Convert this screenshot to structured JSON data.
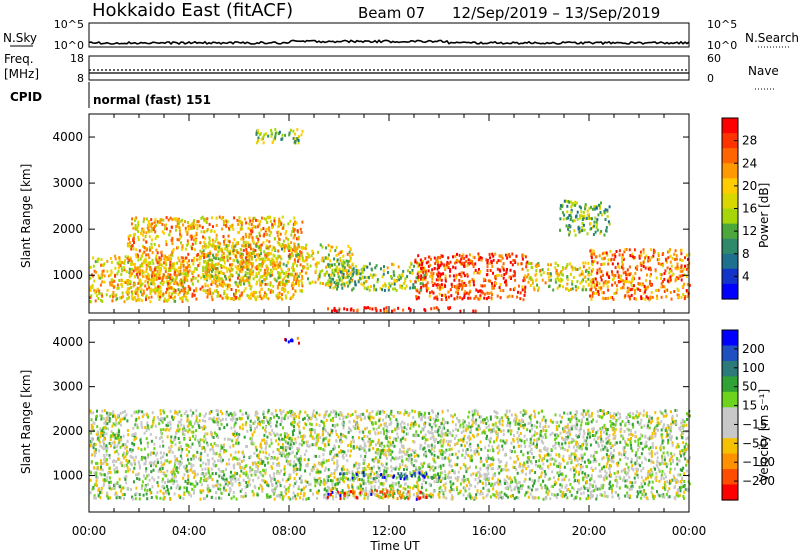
{
  "header": {
    "title": "Hokkaido East (fitACF)",
    "beam": "Beam 07",
    "date_range": "12/Sep/2019 – 13/Sep/2019"
  },
  "top_panels": {
    "nsky": {
      "label": "N.Sky",
      "ticks": [
        "10^5",
        "10^0"
      ],
      "right_label": "N.Search",
      "right_ticks": [
        "10^5",
        "10^0"
      ]
    },
    "freq": {
      "label_top": "Freq.",
      "label_unit": "[MHz]",
      "ticks": [
        "18",
        "8"
      ],
      "right_label": "Nave",
      "right_ticks": [
        "60",
        "0"
      ]
    },
    "cpid": {
      "label": "CPID",
      "text": "normal (fast) 151"
    }
  },
  "chart_data": [
    {
      "type": "heatmap",
      "name": "power",
      "xlabel": "",
      "ylabel": "Slant Range [km]",
      "x_ticks": [],
      "y_ticks": [
        "4000",
        "3000",
        "2000",
        "1000"
      ],
      "ylim": [
        180,
        4500
      ],
      "colorbar": {
        "label": "Power [dB]",
        "ticks": [
          "28",
          "24",
          "20",
          "16",
          "12",
          "8",
          "4"
        ],
        "colors": [
          "#ff0000",
          "#ff3300",
          "#ff6600",
          "#ff9900",
          "#ffcc00",
          "#d8d800",
          "#a6d60a",
          "#4ca83c",
          "#2e8a6a",
          "#1f6f8f",
          "#1234c8",
          "#0000ff"
        ]
      },
      "echo_regions": [
        {
          "t0": 0.0,
          "t1": 4.0,
          "r0": 450,
          "r1": 1450,
          "level": 0.62
        },
        {
          "t0": 1.5,
          "t1": 8.5,
          "r0": 500,
          "r1": 2300,
          "level": 0.66
        },
        {
          "t0": 4.5,
          "t1": 10.5,
          "r0": 800,
          "r1": 1700,
          "level": 0.55
        },
        {
          "t0": 9.5,
          "t1": 13.5,
          "r0": 700,
          "r1": 1300,
          "level": 0.45
        },
        {
          "t0": 13.0,
          "t1": 17.5,
          "r0": 500,
          "r1": 1500,
          "level": 0.85
        },
        {
          "t0": 17.5,
          "t1": 20.0,
          "r0": 700,
          "r1": 1300,
          "level": 0.55
        },
        {
          "t0": 20.0,
          "t1": 24.0,
          "r0": 500,
          "r1": 1600,
          "level": 0.75
        },
        {
          "t0": 6.5,
          "t1": 8.5,
          "r0": 3900,
          "r1": 4200,
          "level": 0.45
        },
        {
          "t0": 18.8,
          "t1": 20.8,
          "r0": 1900,
          "r1": 2650,
          "level": 0.4
        },
        {
          "t0": 9.5,
          "t1": 16.0,
          "r0": 250,
          "r1": 330,
          "level": 0.95
        }
      ]
    },
    {
      "type": "heatmap",
      "name": "velocity",
      "xlabel": "Time UT",
      "ylabel": "Slant Range [km]",
      "x_ticks": [
        "00:00",
        "04:00",
        "08:00",
        "12:00",
        "16:00",
        "20:00",
        "00:00"
      ],
      "y_ticks": [
        "4000",
        "3000",
        "2000",
        "1000"
      ],
      "ylim": [
        180,
        4500
      ],
      "colorbar": {
        "label": "Velocity [m s⁻¹]",
        "ticks": [
          "200",
          "100",
          "50",
          "15",
          "−15",
          "−50",
          "−100",
          "−200"
        ],
        "colors": [
          "#0000ff",
          "#1f4fc0",
          "#2d7a7a",
          "#31a236",
          "#6cd41c",
          "#c8c8c8",
          "#c8c8c8",
          "#f4c000",
          "#ff9000",
          "#ff4c00",
          "#ff0000"
        ]
      },
      "echo_regions": [
        {
          "t0": 0.0,
          "t1": 24.0,
          "r0": 500,
          "r1": 2500,
          "level": 0.5
        },
        {
          "t0": 10.0,
          "t1": 14.0,
          "r0": 950,
          "r1": 1100,
          "level": 0.8
        },
        {
          "t0": 9.5,
          "t1": 13.5,
          "r0": 500,
          "r1": 700,
          "level": 0.2
        },
        {
          "t0": 7.8,
          "t1": 8.4,
          "r0": 4000,
          "r1": 4150,
          "level": 0.0
        }
      ]
    }
  ]
}
